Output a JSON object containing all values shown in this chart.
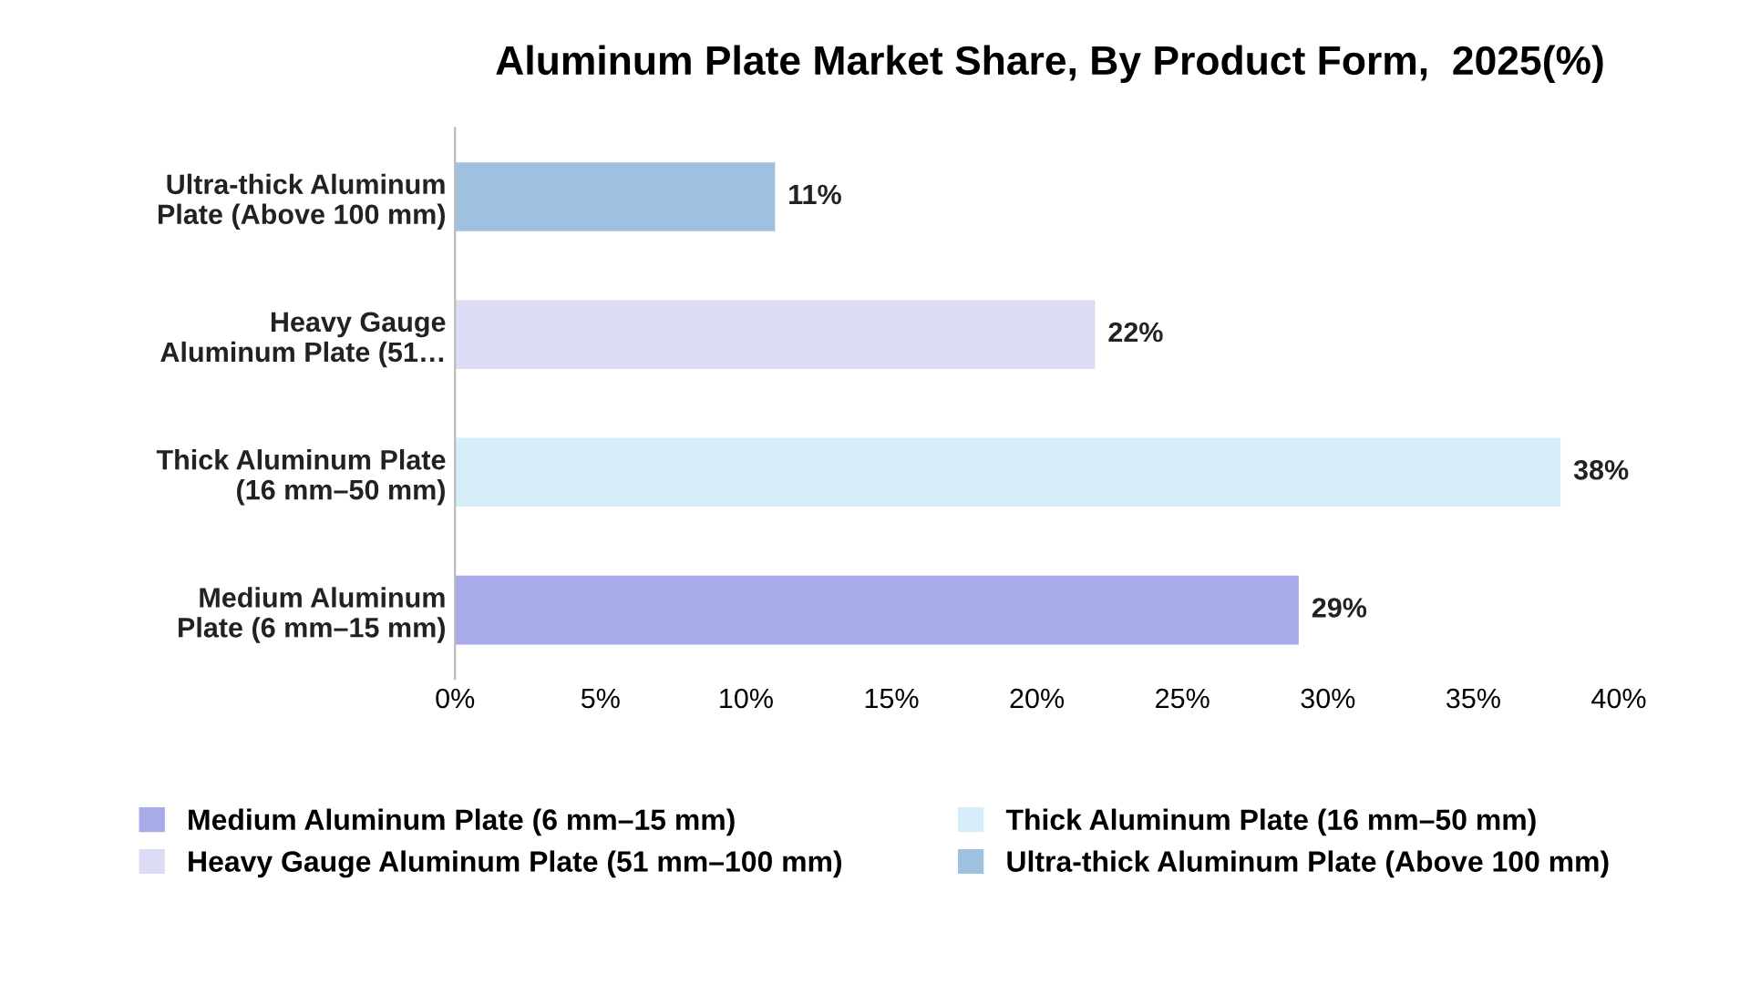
{
  "chart_data": {
    "type": "bar",
    "orientation": "horizontal",
    "title": "Aluminum Plate Market Share, By Product Form,  2025(%)",
    "categories": [
      "Ultra-thick Aluminum\nPlate (Above 100 mm)",
      "Heavy Gauge\nAluminum Plate (51…",
      "Thick Aluminum Plate\n(16 mm–50 mm)",
      "Medium Aluminum\nPlate (6 mm–15 mm)"
    ],
    "series": [
      {
        "name": "Medium Aluminum Plate (6 mm–15 mm)",
        "color": "#a9aae8",
        "values": [
          null,
          null,
          null,
          29
        ],
        "value_labels": [
          null,
          null,
          null,
          "29%"
        ]
      },
      {
        "name": "Thick Aluminum Plate (16 mm–50 mm)",
        "color": "#d5eef9",
        "values": [
          null,
          null,
          38,
          null
        ],
        "value_labels": [
          null,
          null,
          "38%",
          null
        ]
      },
      {
        "name": "Heavy Gauge Aluminum Plate (51 mm–100 mm)",
        "color": "#dcdcf4",
        "values": [
          null,
          22,
          null,
          null
        ],
        "value_labels": [
          null,
          "22%",
          null,
          null
        ]
      },
      {
        "name": "Ultra-thick Aluminum Plate (Above 100 mm)",
        "color": "#9fc1e0",
        "values": [
          11,
          null,
          null,
          null
        ],
        "value_labels": [
          "11%",
          null,
          null,
          null
        ]
      }
    ],
    "xlim": [
      0,
      40
    ],
    "xticks": [
      {
        "value": 0,
        "label": "0%"
      },
      {
        "value": 5,
        "label": "5%"
      },
      {
        "value": 10,
        "label": "10%"
      },
      {
        "value": 15,
        "label": "15%"
      },
      {
        "value": 20,
        "label": "20%"
      },
      {
        "value": 25,
        "label": "25%"
      },
      {
        "value": 30,
        "label": "30%"
      },
      {
        "value": 35,
        "label": "35%"
      },
      {
        "value": 40,
        "label": "40%"
      }
    ],
    "grid": false,
    "legend": "bottom"
  }
}
